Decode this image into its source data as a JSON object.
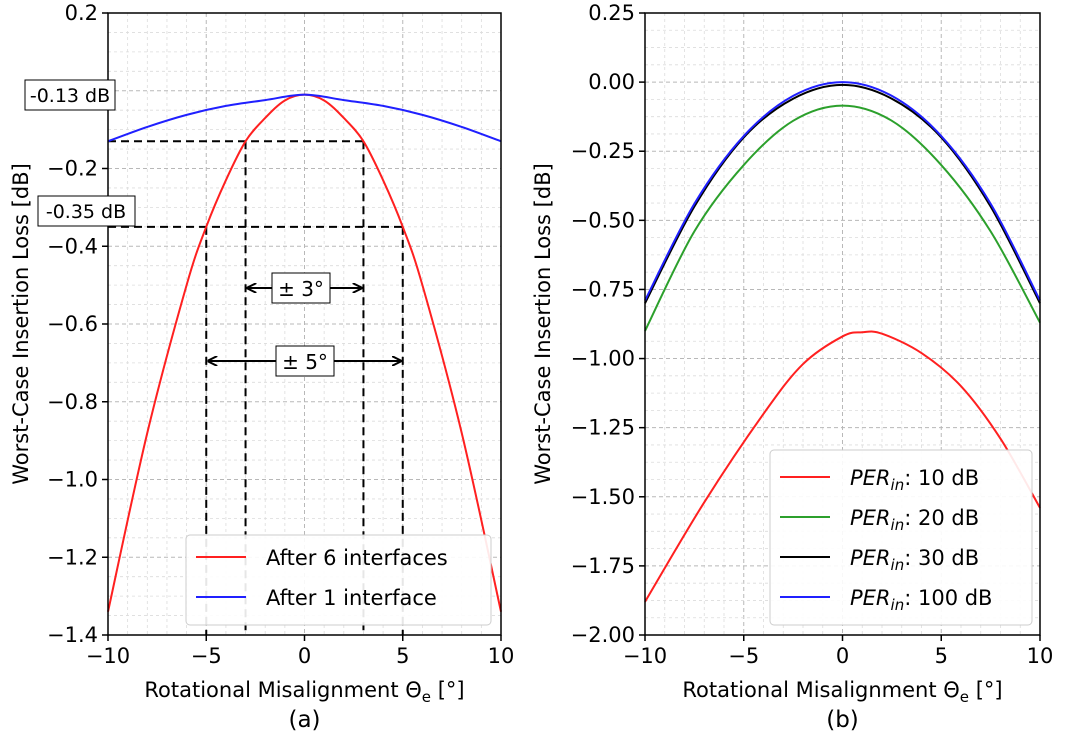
{
  "chart_data": [
    {
      "type": "line",
      "panel_label": "(a)",
      "xlabel": "Rotational Misalignment Θ",
      "xlabel_sub": "e",
      "xlabel_unit": " [°]",
      "ylabel": "Worst-Case Insertion Loss [dB]",
      "xlim": [
        -10,
        10
      ],
      "ylim": [
        -1.4,
        0.2
      ],
      "xticks": [
        -10,
        -5,
        0,
        5,
        10
      ],
      "xtick_labels": [
        "−10",
        "−5",
        "0",
        "5",
        "10"
      ],
      "yticks": [
        0.2,
        -0.2,
        -0.4,
        -0.6,
        -0.8,
        -1.0,
        -1.2,
        -1.4
      ],
      "ytick_labels": [
        "0.2",
        "−0.2",
        "−0.4",
        "−0.6",
        "−0.8",
        "−1.0",
        "−1.2",
        "−1.4"
      ],
      "grid": true,
      "legend_position": "lower-right",
      "series": [
        {
          "name": "After 6 interfaces",
          "color": "#ff2020",
          "x": [
            -10,
            -8,
            -6,
            -5,
            -4,
            -3,
            -2,
            -1,
            0,
            1,
            2,
            3,
            4,
            5,
            6,
            8,
            10
          ],
          "y": [
            -1.34,
            -0.88,
            -0.5,
            -0.35,
            -0.23,
            -0.13,
            -0.07,
            -0.025,
            -0.01,
            -0.025,
            -0.07,
            -0.13,
            -0.23,
            -0.35,
            -0.5,
            -0.88,
            -1.34
          ]
        },
        {
          "name": "After 1 interface",
          "color": "#2020ff",
          "x": [
            -10,
            -8,
            -6,
            -4,
            -2,
            0,
            2,
            4,
            6,
            8,
            10
          ],
          "y": [
            -0.13,
            -0.093,
            -0.062,
            -0.039,
            -0.024,
            -0.01,
            -0.024,
            -0.039,
            -0.062,
            -0.093,
            -0.13
          ]
        }
      ],
      "annotations": {
        "label_013": "-0.13 dB",
        "label_035": "-0.35 dB",
        "pm3": "± 3°",
        "pm5": "± 5°"
      }
    },
    {
      "type": "line",
      "panel_label": "(b)",
      "xlabel": "Rotational Misalignment Θ",
      "xlabel_sub": "e",
      "xlabel_unit": " [°]",
      "ylabel": "Worst-Case Insertion Loss [dB]",
      "xlim": [
        -10,
        10
      ],
      "ylim": [
        -2.0,
        0.25
      ],
      "xticks": [
        -10,
        -5,
        0,
        5,
        10
      ],
      "xtick_labels": [
        "−10",
        "−5",
        "0",
        "5",
        "10"
      ],
      "yticks": [
        0.25,
        0.0,
        -0.25,
        -0.5,
        -0.75,
        -1.0,
        -1.25,
        -1.5,
        -1.75,
        -2.0
      ],
      "ytick_labels": [
        "0.25",
        "0.00",
        "−0.25",
        "−0.50",
        "−0.75",
        "−1.00",
        "−1.25",
        "−1.50",
        "−1.75",
        "−2.00"
      ],
      "grid": true,
      "legend_position": "lower-right",
      "series": [
        {
          "name": "PER",
          "name_sub": "in",
          "name_rest": ": 10 dB",
          "color": "#ff2020",
          "x": [
            -10,
            -7,
            -4,
            -2,
            0,
            1,
            2,
            4,
            6,
            8,
            10
          ],
          "y": [
            -1.88,
            -1.52,
            -1.2,
            -1.02,
            -0.92,
            -0.905,
            -0.91,
            -0.98,
            -1.1,
            -1.29,
            -1.54
          ]
        },
        {
          "name": "PER",
          "name_sub": "in",
          "name_rest": ": 20 dB",
          "color": "#2ca02c",
          "x": [
            -10,
            -7.5,
            -5,
            -2.5,
            0,
            2.5,
            5,
            7.5,
            10
          ],
          "y": [
            -0.9,
            -0.54,
            -0.3,
            -0.14,
            -0.085,
            -0.14,
            -0.3,
            -0.54,
            -0.87
          ]
        },
        {
          "name": "PER",
          "name_sub": "in",
          "name_rest": ": 30 dB",
          "color": "#000000",
          "x": [
            -10,
            -7.5,
            -5,
            -2.5,
            0,
            2.5,
            5,
            7.5,
            10
          ],
          "y": [
            -0.8,
            -0.45,
            -0.2,
            -0.06,
            -0.01,
            -0.06,
            -0.2,
            -0.45,
            -0.8
          ]
        },
        {
          "name": "PER",
          "name_sub": "in",
          "name_rest": ": 100 dB",
          "color": "#2020ff",
          "x": [
            -10,
            -7.5,
            -5,
            -2.5,
            0,
            2.5,
            5,
            7.5,
            10
          ],
          "y": [
            -0.79,
            -0.44,
            -0.195,
            -0.05,
            0.0,
            -0.05,
            -0.195,
            -0.44,
            -0.79
          ]
        }
      ]
    }
  ]
}
